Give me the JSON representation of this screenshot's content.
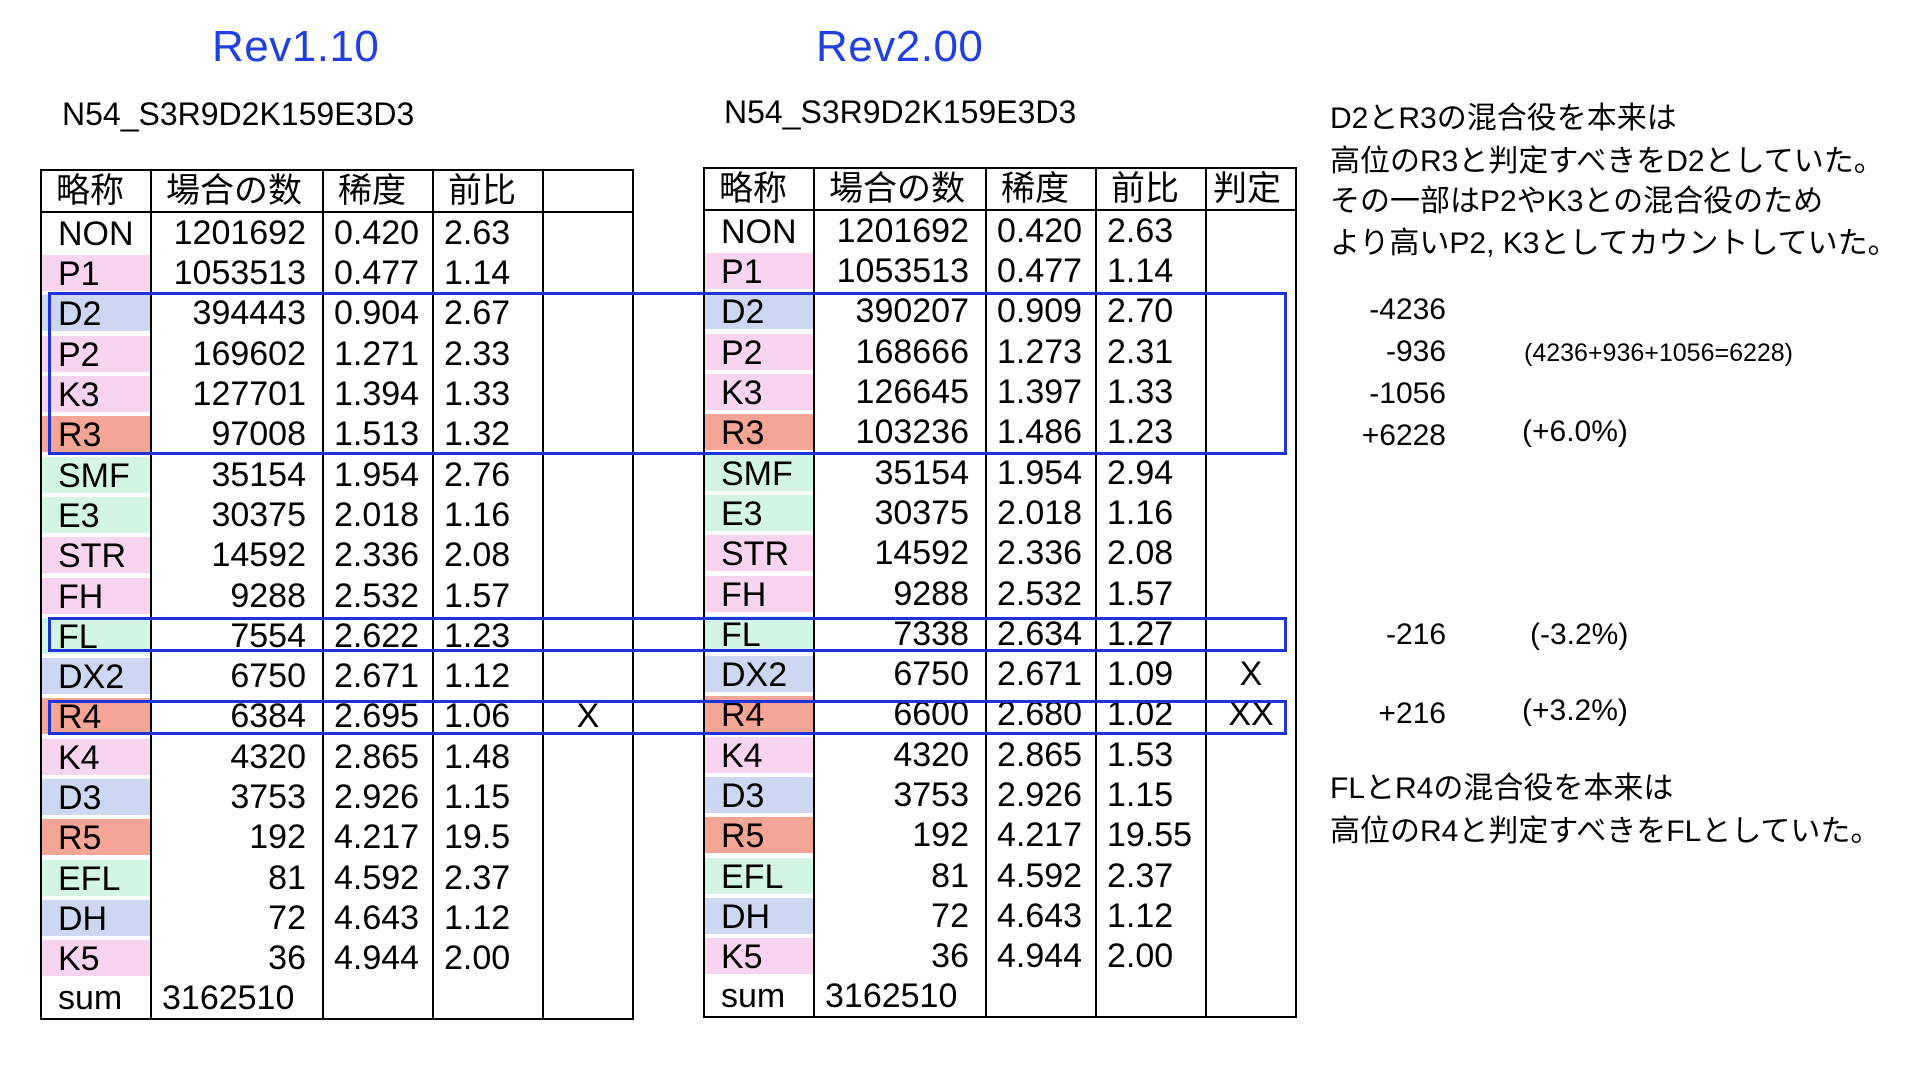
{
  "left": {
    "title": "Rev1.10",
    "subtitle": "N54_S3R9D2K159E3D3",
    "headers": [
      "略称",
      "場合の数",
      "稀度",
      "前比",
      ""
    ],
    "rows": [
      {
        "name": "NON",
        "count": "1201692",
        "rarity": "0.420",
        "ratio": "2.63",
        "judge": "",
        "color": "#ffffff"
      },
      {
        "name": "P1",
        "count": "1053513",
        "rarity": "0.477",
        "ratio": "1.14",
        "judge": "",
        "color": "#f8d4f0"
      },
      {
        "name": "D2",
        "count": "394443",
        "rarity": "0.904",
        "ratio": "2.67",
        "judge": "",
        "color": "#cdd7f2"
      },
      {
        "name": "P2",
        "count": "169602",
        "rarity": "1.271",
        "ratio": "2.33",
        "judge": "",
        "color": "#f8d4f0"
      },
      {
        "name": "K3",
        "count": "127701",
        "rarity": "1.394",
        "ratio": "1.33",
        "judge": "",
        "color": "#f8d4f0"
      },
      {
        "name": "R3",
        "count": "97008",
        "rarity": "1.513",
        "ratio": "1.32",
        "judge": "",
        "color": "#f5a595"
      },
      {
        "name": "SMF",
        "count": "35154",
        "rarity": "1.954",
        "ratio": "2.76",
        "judge": "",
        "color": "#d3f5e3"
      },
      {
        "name": "E3",
        "count": "30375",
        "rarity": "2.018",
        "ratio": "1.16",
        "judge": "",
        "color": "#d3f5e3"
      },
      {
        "name": "STR",
        "count": "14592",
        "rarity": "2.336",
        "ratio": "2.08",
        "judge": "",
        "color": "#f8d4f0"
      },
      {
        "name": "FH",
        "count": "9288",
        "rarity": "2.532",
        "ratio": "1.57",
        "judge": "",
        "color": "#f8d4f0"
      },
      {
        "name": "FL",
        "count": "7554",
        "rarity": "2.622",
        "ratio": "1.23",
        "judge": "",
        "color": "#d3f5e3"
      },
      {
        "name": "DX2",
        "count": "6750",
        "rarity": "2.671",
        "ratio": "1.12",
        "judge": "",
        "color": "#cdd7f2"
      },
      {
        "name": "R4",
        "count": "6384",
        "rarity": "2.695",
        "ratio": "1.06",
        "judge": "X",
        "color": "#f5a595"
      },
      {
        "name": "K4",
        "count": "4320",
        "rarity": "2.865",
        "ratio": "1.48",
        "judge": "",
        "color": "#f8d4f0"
      },
      {
        "name": "D3",
        "count": "3753",
        "rarity": "2.926",
        "ratio": "1.15",
        "judge": "",
        "color": "#cdd7f2"
      },
      {
        "name": "R5",
        "count": "192",
        "rarity": "4.217",
        "ratio": "19.5",
        "judge": "",
        "color": "#f5a595"
      },
      {
        "name": "EFL",
        "count": "81",
        "rarity": "4.592",
        "ratio": "2.37",
        "judge": "",
        "color": "#d3f5e3"
      },
      {
        "name": "DH",
        "count": "72",
        "rarity": "4.643",
        "ratio": "1.12",
        "judge": "",
        "color": "#cdd7f2"
      },
      {
        "name": "K5",
        "count": "36",
        "rarity": "4.944",
        "ratio": "2.00",
        "judge": "",
        "color": "#f8d4f0"
      }
    ],
    "sum": {
      "name": "sum",
      "count": "3162510"
    }
  },
  "right": {
    "title": "Rev2.00",
    "subtitle": "N54_S3R9D2K159E3D3",
    "headers": [
      "略称",
      "場合の数",
      "稀度",
      "前比",
      "判定"
    ],
    "rows": [
      {
        "name": "NON",
        "count": "1201692",
        "rarity": "0.420",
        "ratio": "2.63",
        "judge": "",
        "color": "#ffffff"
      },
      {
        "name": "P1",
        "count": "1053513",
        "rarity": "0.477",
        "ratio": "1.14",
        "judge": "",
        "color": "#f8d4f0"
      },
      {
        "name": "D2",
        "count": "390207",
        "rarity": "0.909",
        "ratio": "2.70",
        "judge": "",
        "color": "#cdd7f2"
      },
      {
        "name": "P2",
        "count": "168666",
        "rarity": "1.273",
        "ratio": "2.31",
        "judge": "",
        "color": "#f8d4f0"
      },
      {
        "name": "K3",
        "count": "126645",
        "rarity": "1.397",
        "ratio": "1.33",
        "judge": "",
        "color": "#f8d4f0"
      },
      {
        "name": "R3",
        "count": "103236",
        "rarity": "1.486",
        "ratio": "1.23",
        "judge": "",
        "color": "#f5a595"
      },
      {
        "name": "SMF",
        "count": "35154",
        "rarity": "1.954",
        "ratio": "2.94",
        "judge": "",
        "color": "#d3f5e3"
      },
      {
        "name": "E3",
        "count": "30375",
        "rarity": "2.018",
        "ratio": "1.16",
        "judge": "",
        "color": "#d3f5e3"
      },
      {
        "name": "STR",
        "count": "14592",
        "rarity": "2.336",
        "ratio": "2.08",
        "judge": "",
        "color": "#f8d4f0"
      },
      {
        "name": "FH",
        "count": "9288",
        "rarity": "2.532",
        "ratio": "1.57",
        "judge": "",
        "color": "#f8d4f0"
      },
      {
        "name": "FL",
        "count": "7338",
        "rarity": "2.634",
        "ratio": "1.27",
        "judge": "",
        "color": "#d3f5e3"
      },
      {
        "name": "DX2",
        "count": "6750",
        "rarity": "2.671",
        "ratio": "1.09",
        "judge": "X",
        "color": "#cdd7f2"
      },
      {
        "name": "R4",
        "count": "6600",
        "rarity": "2.680",
        "ratio": "1.02",
        "judge": "XX",
        "color": "#f5a595"
      },
      {
        "name": "K4",
        "count": "4320",
        "rarity": "2.865",
        "ratio": "1.53",
        "judge": "",
        "color": "#f8d4f0"
      },
      {
        "name": "D3",
        "count": "3753",
        "rarity": "2.926",
        "ratio": "1.15",
        "judge": "",
        "color": "#cdd7f2"
      },
      {
        "name": "R5",
        "count": "192",
        "rarity": "4.217",
        "ratio": "19.55",
        "judge": "",
        "color": "#f5a595"
      },
      {
        "name": "EFL",
        "count": "81",
        "rarity": "4.592",
        "ratio": "2.37",
        "judge": "",
        "color": "#d3f5e3"
      },
      {
        "name": "DH",
        "count": "72",
        "rarity": "4.643",
        "ratio": "1.12",
        "judge": "",
        "color": "#cdd7f2"
      },
      {
        "name": "K5",
        "count": "36",
        "rarity": "4.944",
        "ratio": "2.00",
        "judge": "",
        "color": "#f8d4f0"
      }
    ],
    "sum": {
      "name": "sum",
      "count": "3162510"
    }
  },
  "notes": {
    "top": [
      "D2とR3の混合役を本来は",
      "高位のR3と判定すべきをD2としていた。",
      "その一部はP2やK3との混合役のため",
      "より高いP2, K3としてカウントしていた。"
    ],
    "bottom": [
      "FLとR4の混合役を本来は",
      "高位のR4と判定すべきをFLとしていた。"
    ],
    "diffs": {
      "d2": "-4236",
      "p2": "-936",
      "k3": "-1056",
      "r3": "+6228",
      "fl": "-216",
      "r4": "+216"
    },
    "formula": "(4236+936+1056=6228)",
    "pct_r3": "(+6.0%)",
    "pct_fl": "(-3.2%)",
    "pct_r4": "(+3.2%)"
  },
  "colors": {
    "title_blue": "#1f3fe0",
    "highlight_blue": "#1f34d8"
  }
}
